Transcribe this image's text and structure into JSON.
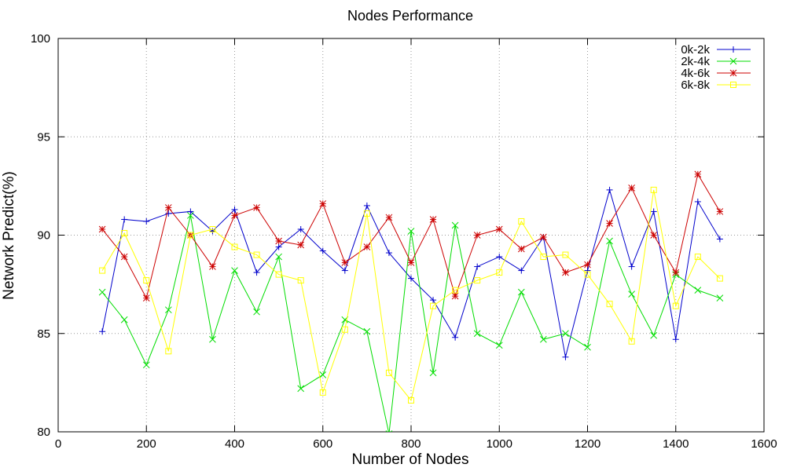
{
  "chart_data": {
    "type": "line",
    "title": "Nodes Performance",
    "xlabel": "Number of Nodes",
    "ylabel": "Network Predict(%)",
    "xlim": [
      0,
      1600
    ],
    "ylim": [
      80,
      100
    ],
    "xticks": [
      0,
      200,
      400,
      600,
      800,
      1000,
      1200,
      1400,
      1600
    ],
    "yticks": [
      80,
      85,
      90,
      95,
      100
    ],
    "grid": true,
    "legend_position": "top-right",
    "x": [
      100,
      150,
      200,
      250,
      300,
      350,
      400,
      450,
      500,
      550,
      600,
      650,
      700,
      750,
      800,
      850,
      900,
      950,
      1000,
      1050,
      1100,
      1150,
      1200,
      1250,
      1300,
      1350,
      1400,
      1450,
      1500
    ],
    "series": [
      {
        "name": "0k-2k",
        "color": "#0000cc",
        "marker": "plus",
        "values": [
          85.1,
          90.8,
          90.7,
          91.1,
          91.2,
          90.2,
          91.3,
          88.1,
          89.4,
          90.3,
          89.2,
          88.2,
          91.5,
          89.1,
          87.8,
          86.7,
          84.8,
          88.4,
          88.9,
          88.2,
          89.9,
          83.8,
          88.2,
          92.3,
          88.4,
          91.2,
          84.7,
          91.7,
          89.8
        ]
      },
      {
        "name": "2k-4k",
        "color": "#00dd00",
        "marker": "cross",
        "values": [
          87.1,
          85.7,
          83.4,
          86.2,
          91.0,
          84.7,
          88.2,
          86.1,
          88.9,
          82.2,
          82.9,
          85.7,
          85.1,
          79.9,
          90.2,
          83.0,
          90.5,
          85.0,
          84.4,
          87.1,
          84.7,
          85.0,
          84.3,
          89.7,
          87.0,
          84.9,
          88.0,
          87.2,
          86.8
        ]
      },
      {
        "name": "4k-6k",
        "color": "#cc0000",
        "marker": "star",
        "values": [
          90.3,
          88.9,
          86.8,
          91.4,
          90.0,
          88.4,
          91.0,
          91.4,
          89.7,
          89.5,
          91.6,
          88.6,
          89.4,
          90.9,
          88.6,
          90.8,
          86.9,
          90.0,
          90.3,
          89.3,
          89.9,
          88.1,
          88.5,
          90.6,
          92.4,
          90.0,
          88.1,
          93.1,
          91.2
        ]
      },
      {
        "name": "6k-8k",
        "color": "#ffff00",
        "marker": "square",
        "values": [
          88.2,
          90.1,
          87.7,
          84.1,
          90.0,
          90.3,
          89.4,
          89.0,
          88.0,
          87.7,
          82.0,
          85.2,
          91.1,
          83.0,
          81.6,
          86.4,
          87.2,
          87.7,
          88.1,
          90.7,
          88.9,
          89.0,
          88.0,
          86.5,
          84.6,
          92.3,
          86.4,
          88.9,
          87.8
        ]
      }
    ]
  }
}
